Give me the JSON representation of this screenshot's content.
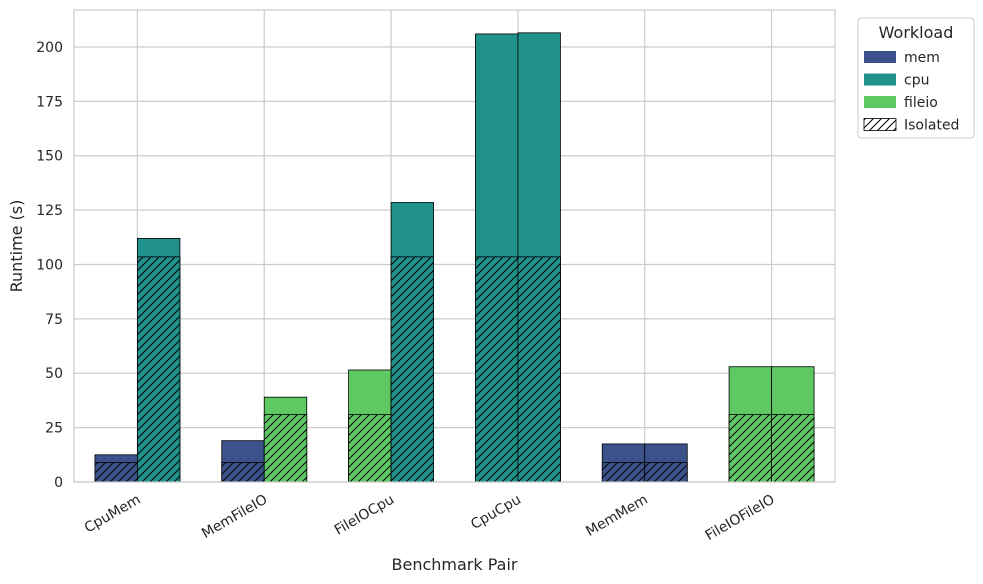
{
  "chart_data": {
    "type": "bar",
    "stacked_overlay": true,
    "xlabel": "Benchmark Pair",
    "ylabel": "Runtime (s)",
    "ylim": [
      0,
      217
    ],
    "yticks": [
      0,
      25,
      50,
      75,
      100,
      125,
      150,
      175,
      200
    ],
    "grid": true,
    "categories": [
      "CpuMem",
      "MemFileIO",
      "FileIOCpu",
      "CpuCpu",
      "MemMem",
      "FileIOFileIO"
    ],
    "legend": {
      "title": "Workload",
      "placement": "outside-top-right",
      "entries": [
        {
          "label": "mem",
          "color": "#3b528b"
        },
        {
          "label": "cpu",
          "color": "#21918c"
        },
        {
          "label": "fileio",
          "color": "#5ec962"
        },
        {
          "label": "Isolated",
          "hatched": true
        }
      ]
    },
    "workload_colors": {
      "mem": "#3b528b",
      "cpu": "#21918c",
      "fileio": "#5ec962"
    },
    "pairs": [
      {
        "category": "CpuMem",
        "bars": [
          {
            "workload": "mem",
            "runtime": 12.5,
            "isolated": 9
          },
          {
            "workload": "cpu",
            "runtime": 112,
            "isolated": 103.5
          }
        ]
      },
      {
        "category": "MemFileIO",
        "bars": [
          {
            "workload": "mem",
            "runtime": 19,
            "isolated": 9
          },
          {
            "workload": "fileio",
            "runtime": 39,
            "isolated": 31
          }
        ]
      },
      {
        "category": "FileIOCpu",
        "bars": [
          {
            "workload": "fileio",
            "runtime": 51.5,
            "isolated": 31
          },
          {
            "workload": "cpu",
            "runtime": 128.5,
            "isolated": 103.5
          }
        ]
      },
      {
        "category": "CpuCpu",
        "bars": [
          {
            "workload": "cpu",
            "runtime": 206,
            "isolated": 103.5
          },
          {
            "workload": "cpu",
            "runtime": 206.5,
            "isolated": 103.5
          }
        ]
      },
      {
        "category": "MemMem",
        "bars": [
          {
            "workload": "mem",
            "runtime": 17.5,
            "isolated": 9
          },
          {
            "workload": "mem",
            "runtime": 17.5,
            "isolated": 9
          }
        ]
      },
      {
        "category": "FileIOFileIO",
        "bars": [
          {
            "workload": "fileio",
            "runtime": 53,
            "isolated": 31
          },
          {
            "workload": "fileio",
            "runtime": 53,
            "isolated": 31
          }
        ]
      }
    ]
  }
}
